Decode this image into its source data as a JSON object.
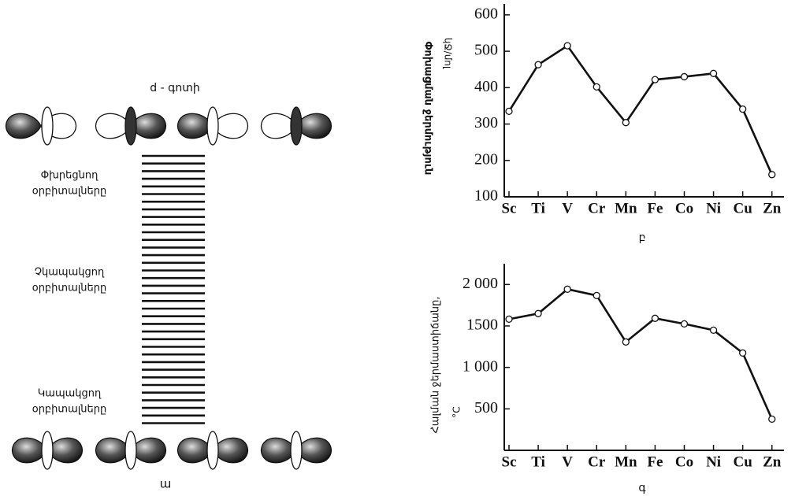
{
  "chart_data": [
    {
      "type": "line",
      "y_label": "Փոխացման ջերմություն",
      "y_unit": "կՋ/մոլ",
      "caption": "բ",
      "categories": [
        "Sc",
        "Ti",
        "V",
        "Cr",
        "Mn",
        "Fe",
        "Co",
        "Ni",
        "Cu",
        "Zn"
      ],
      "values": [
        335,
        463,
        515,
        402,
        304,
        422,
        430,
        439,
        341,
        161
      ],
      "color": "#111111",
      "ylim": [
        100,
        630
      ],
      "yticks": [
        100,
        200,
        300,
        400,
        500,
        600
      ]
    },
    {
      "type": "line",
      "y_label": "Հալման ջերմաստիճանը,",
      "y_unit": "°C",
      "caption": "գ",
      "categories": [
        "Sc",
        "Ti",
        "V",
        "Cr",
        "Mn",
        "Fe",
        "Co",
        "Ni",
        "Cu",
        "Zn"
      ],
      "values": [
        1582,
        1649,
        1943,
        1867,
        1307,
        1592,
        1525,
        1449,
        1174,
        376
      ],
      "color": "#111111",
      "ylim": [
        0,
        2250
      ],
      "yticks": [
        {
          "value": 500,
          "label": "500"
        },
        {
          "value": 1000,
          "label": "1 000"
        },
        {
          "value": 1500,
          "label": "1500"
        },
        {
          "value": 2000,
          "label": "2 000"
        }
      ]
    }
  ],
  "diagram": {
    "title": "d - գոտի",
    "caption": "ա",
    "labels": [
      [
        "Փխրեցնող",
        "օրբիտալները"
      ],
      [
        "Չկապակցող",
        "օրբիտալները"
      ],
      [
        "Կապակցող",
        "օրբիտալները"
      ]
    ]
  }
}
